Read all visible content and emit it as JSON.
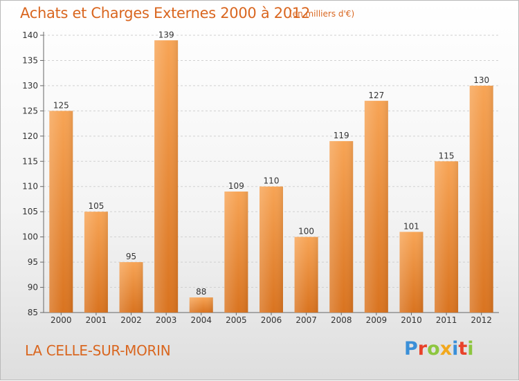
{
  "title": "Achats et Charges Externes 2000 à 2012",
  "subtitle": "(en milliers d'€)",
  "commune": "LA CELLE-SUR-MORIN",
  "brand": {
    "text": "Proxiti",
    "letter_colors": [
      "#3a8fd8",
      "#e8422a",
      "#8dc63f",
      "#f2a81d",
      "#3a8fd8",
      "#e8422a",
      "#8dc63f"
    ]
  },
  "colors": {
    "bar_top": "#f7a455",
    "bar_bottom": "#d9731f",
    "axis": "#666666",
    "grid": "#d0d0d0",
    "text": "#d9661f",
    "label": "#333333"
  },
  "chart_data": {
    "type": "bar",
    "categories": [
      "2000",
      "2001",
      "2002",
      "2003",
      "2004",
      "2005",
      "2006",
      "2007",
      "2008",
      "2009",
      "2010",
      "2011",
      "2012"
    ],
    "values": [
      125,
      105,
      95,
      139,
      88,
      109,
      110,
      100,
      119,
      127,
      101,
      115,
      130
    ],
    "title": "Achats et Charges Externes 2000 à 2012",
    "xlabel": "",
    "ylabel": "",
    "ylim": [
      85,
      140
    ],
    "yticks": [
      85,
      90,
      95,
      100,
      105,
      110,
      115,
      120,
      125,
      130,
      135,
      140
    ],
    "grid": true,
    "data_labels": true
  }
}
